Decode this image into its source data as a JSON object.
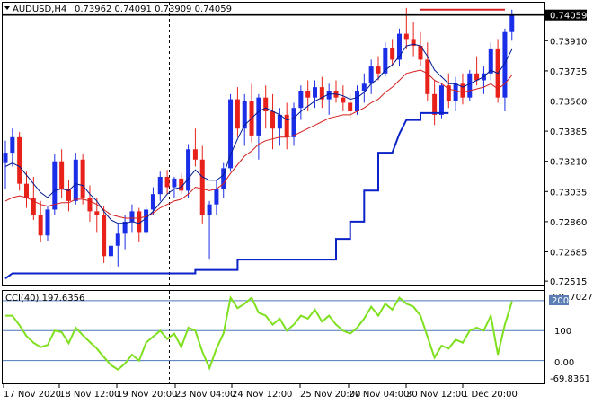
{
  "header": {
    "symbol": "AUDUSD,H4",
    "ohlc": "0.73962 0.74091 0.73909 0.74059"
  },
  "subwindow": {
    "indicator": "CCI(40) 197.6356",
    "max_label": "226.7027",
    "min_label": "-69.8361",
    "level_200": "200",
    "level_100": "100",
    "level_0": "0.00"
  },
  "colors": {
    "bull": "#1a2ee8",
    "bear": "#e8211a",
    "ma_fast": "#001a8f",
    "ma_slow": "#d61e1e",
    "trail": "#0a22c8",
    "cci": "#7ee01e",
    "grid": "#000000",
    "current_price_bg": "#000000"
  },
  "chart_data": {
    "type": "candlestick",
    "symbol": "AUDUSD",
    "timeframe": "H4",
    "price_ticks": [
      "0.74059",
      "0.73910",
      "0.73735",
      "0.73560",
      "0.73385",
      "0.73210",
      "0.73035",
      "0.72860",
      "0.72685",
      "0.72515"
    ],
    "price_tick_values": [
      0.74059,
      0.7391,
      0.73735,
      0.7356,
      0.73385,
      0.7321,
      0.73035,
      0.7286,
      0.72685,
      0.72515
    ],
    "ylim": [
      0.725,
      0.7412
    ],
    "time_labels": [
      "17 Nov 2020",
      "18 Nov 12:00",
      "19 Nov 20:00",
      "23 Nov 04:00",
      "24 Nov 12:00",
      "25 Nov 20:00",
      "27 Nov 04:00",
      "30 Nov 12:00",
      "1 Dec 20:00"
    ],
    "current_price": "0.74059",
    "current_price_value": 0.74059,
    "resistance_level": 0.7409,
    "candles": [
      [
        0.732,
        0.7333,
        0.7305,
        0.7326
      ],
      [
        0.7326,
        0.734,
        0.7318,
        0.7335
      ],
      [
        0.7335,
        0.7338,
        0.7304,
        0.7308
      ],
      [
        0.7308,
        0.7315,
        0.7294,
        0.73
      ],
      [
        0.73,
        0.7312,
        0.7287,
        0.729
      ],
      [
        0.729,
        0.7298,
        0.7274,
        0.7278
      ],
      [
        0.7278,
        0.7295,
        0.7275,
        0.7293
      ],
      [
        0.7293,
        0.7325,
        0.729,
        0.7321
      ],
      [
        0.7321,
        0.7328,
        0.73,
        0.7305
      ],
      [
        0.7305,
        0.731,
        0.7292,
        0.7298
      ],
      [
        0.7298,
        0.7326,
        0.7296,
        0.7322
      ],
      [
        0.7322,
        0.7325,
        0.7296,
        0.73
      ],
      [
        0.73,
        0.7307,
        0.7286,
        0.7292
      ],
      [
        0.7292,
        0.73,
        0.728,
        0.729
      ],
      [
        0.729,
        0.7295,
        0.7262,
        0.7266
      ],
      [
        0.7266,
        0.7275,
        0.7258,
        0.7272
      ],
      [
        0.7272,
        0.7285,
        0.726,
        0.7279
      ],
      [
        0.7279,
        0.729,
        0.727,
        0.7286
      ],
      [
        0.7286,
        0.7296,
        0.728,
        0.7292
      ],
      [
        0.7292,
        0.7294,
        0.7274,
        0.728
      ],
      [
        0.728,
        0.7295,
        0.7278,
        0.7293
      ],
      [
        0.7293,
        0.7306,
        0.729,
        0.7302
      ],
      [
        0.7302,
        0.7315,
        0.7298,
        0.7312
      ],
      [
        0.7312,
        0.7316,
        0.7302,
        0.7306
      ],
      [
        0.7306,
        0.7312,
        0.73,
        0.7311
      ],
      [
        0.7311,
        0.7314,
        0.7302,
        0.7304
      ],
      [
        0.7304,
        0.7331,
        0.73,
        0.7328
      ],
      [
        0.7328,
        0.734,
        0.7318,
        0.7322
      ],
      [
        0.7322,
        0.733,
        0.7285,
        0.729
      ],
      [
        0.729,
        0.7298,
        0.7264,
        0.7296
      ],
      [
        0.7296,
        0.731,
        0.729,
        0.7305
      ],
      [
        0.7305,
        0.732,
        0.73,
        0.7317
      ],
      [
        0.7317,
        0.736,
        0.7315,
        0.7357
      ],
      [
        0.7357,
        0.7364,
        0.7335,
        0.734
      ],
      [
        0.734,
        0.736,
        0.733,
        0.7356
      ],
      [
        0.7356,
        0.7366,
        0.7332,
        0.7336
      ],
      [
        0.7336,
        0.736,
        0.7322,
        0.7358
      ],
      [
        0.7358,
        0.7365,
        0.734,
        0.735
      ],
      [
        0.735,
        0.736,
        0.7328,
        0.734
      ],
      [
        0.734,
        0.7352,
        0.733,
        0.7348
      ],
      [
        0.7348,
        0.7355,
        0.7328,
        0.7335
      ],
      [
        0.7335,
        0.7355,
        0.733,
        0.7352
      ],
      [
        0.7352,
        0.7365,
        0.7345,
        0.7362
      ],
      [
        0.7362,
        0.7368,
        0.735,
        0.7358
      ],
      [
        0.7358,
        0.7368,
        0.7352,
        0.7364
      ],
      [
        0.7364,
        0.737,
        0.7352,
        0.7357
      ],
      [
        0.7357,
        0.7366,
        0.7348,
        0.7362
      ],
      [
        0.7362,
        0.7368,
        0.7355,
        0.7358
      ],
      [
        0.7358,
        0.7365,
        0.735,
        0.7355
      ],
      [
        0.7355,
        0.736,
        0.7346,
        0.735
      ],
      [
        0.735,
        0.7365,
        0.7348,
        0.7362
      ],
      [
        0.7362,
        0.7372,
        0.7355,
        0.7366
      ],
      [
        0.7366,
        0.738,
        0.736,
        0.7376
      ],
      [
        0.7376,
        0.7382,
        0.7368,
        0.7372
      ],
      [
        0.7372,
        0.739,
        0.737,
        0.7387
      ],
      [
        0.7387,
        0.7392,
        0.7376,
        0.738
      ],
      [
        0.738,
        0.7398,
        0.7376,
        0.7395
      ],
      [
        0.7395,
        0.741,
        0.7386,
        0.7392
      ],
      [
        0.7392,
        0.7402,
        0.7382,
        0.7388
      ],
      [
        0.7388,
        0.7396,
        0.7376,
        0.738
      ],
      [
        0.738,
        0.739,
        0.7356,
        0.736
      ],
      [
        0.736,
        0.7368,
        0.7342,
        0.7348
      ],
      [
        0.7348,
        0.7366,
        0.7346,
        0.7365
      ],
      [
        0.7365,
        0.7372,
        0.7352,
        0.7356
      ],
      [
        0.7356,
        0.737,
        0.735,
        0.7366
      ],
      [
        0.7366,
        0.7372,
        0.7354,
        0.7358
      ],
      [
        0.7358,
        0.7374,
        0.7356,
        0.7372
      ],
      [
        0.7372,
        0.7382,
        0.7365,
        0.7368
      ],
      [
        0.7368,
        0.7376,
        0.736,
        0.7372
      ],
      [
        0.7372,
        0.739,
        0.7368,
        0.7386
      ],
      [
        0.7386,
        0.7392,
        0.7355,
        0.7358
      ],
      [
        0.7358,
        0.7398,
        0.735,
        0.7396
      ],
      [
        0.7396,
        0.7409,
        0.7391,
        0.7406
      ]
    ],
    "ma_fast": [
      0.7318,
      0.732,
      0.7318,
      0.7313,
      0.7308,
      0.7303,
      0.73,
      0.7304,
      0.7305,
      0.7304,
      0.7308,
      0.7307,
      0.7302,
      0.7298,
      0.7292,
      0.7287,
      0.7285,
      0.7285,
      0.7286,
      0.7285,
      0.7288,
      0.7292,
      0.7297,
      0.7302,
      0.7305,
      0.7306,
      0.7311,
      0.7316,
      0.7312,
      0.731,
      0.731,
      0.7313,
      0.7325,
      0.7334,
      0.7342,
      0.7346,
      0.735,
      0.7352,
      0.735,
      0.7348,
      0.7345,
      0.7346,
      0.735,
      0.7353,
      0.7356,
      0.7358,
      0.736,
      0.736,
      0.7359,
      0.7357,
      0.7358,
      0.7361,
      0.7366,
      0.7369,
      0.7374,
      0.7377,
      0.7382,
      0.7388,
      0.7389,
      0.7388,
      0.7382,
      0.7374,
      0.737,
      0.7366,
      0.7366,
      0.7364,
      0.7366,
      0.7368,
      0.737,
      0.7374,
      0.7372,
      0.7378,
      0.7386
    ],
    "ma_slow": [
      0.7298,
      0.73,
      0.7301,
      0.73,
      0.7298,
      0.7296,
      0.7295,
      0.7296,
      0.7297,
      0.7297,
      0.7299,
      0.7299,
      0.7298,
      0.7296,
      0.7293,
      0.729,
      0.7289,
      0.7288,
      0.7288,
      0.7288,
      0.7289,
      0.7291,
      0.7294,
      0.7296,
      0.7298,
      0.7299,
      0.7302,
      0.7306,
      0.7305,
      0.7304,
      0.7305,
      0.7308,
      0.7314,
      0.7319,
      0.7324,
      0.7327,
      0.7331,
      0.7333,
      0.7334,
      0.7335,
      0.7335,
      0.7336,
      0.7338,
      0.734,
      0.7342,
      0.7344,
      0.7346,
      0.7347,
      0.7348,
      0.7348,
      0.735,
      0.7352,
      0.7355,
      0.7357,
      0.7361,
      0.7364,
      0.7368,
      0.7372,
      0.7373,
      0.7374,
      0.7372,
      0.7368,
      0.7366,
      0.7363,
      0.7362,
      0.7361,
      0.7362,
      0.7363,
      0.7364,
      0.7366,
      0.7363,
      0.7366,
      0.7371
    ],
    "trail_steps": [
      [
        0,
        0.7253
      ],
      [
        1,
        0.7256
      ],
      [
        27,
        0.7256
      ],
      [
        27,
        0.7258
      ],
      [
        33,
        0.7258
      ],
      [
        33,
        0.7264
      ],
      [
        47,
        0.7264
      ],
      [
        47,
        0.7276
      ],
      [
        49,
        0.7276
      ],
      [
        49,
        0.7286
      ],
      [
        51,
        0.7286
      ],
      [
        51,
        0.7304
      ],
      [
        53,
        0.7304
      ],
      [
        53,
        0.7326
      ],
      [
        55,
        0.7326
      ],
      [
        56,
        0.7337
      ],
      [
        57,
        0.7345
      ],
      [
        59,
        0.7345
      ],
      [
        59,
        0.7349
      ],
      [
        63,
        0.7349
      ]
    ],
    "cci": [
      150,
      150,
      118,
      82,
      60,
      45,
      52,
      100,
      95,
      58,
      110,
      85,
      62,
      40,
      12,
      -15,
      -30,
      -10,
      20,
      0,
      60,
      80,
      100,
      72,
      90,
      45,
      110,
      100,
      30,
      -25,
      40,
      90,
      210,
      175,
      190,
      210,
      160,
      150,
      120,
      140,
      100,
      120,
      150,
      140,
      170,
      130,
      150,
      120,
      100,
      90,
      110,
      140,
      180,
      150,
      190,
      170,
      210,
      190,
      180,
      150,
      80,
      10,
      50,
      40,
      70,
      60,
      100,
      110,
      100,
      150,
      20,
      120,
      197.6
    ]
  }
}
